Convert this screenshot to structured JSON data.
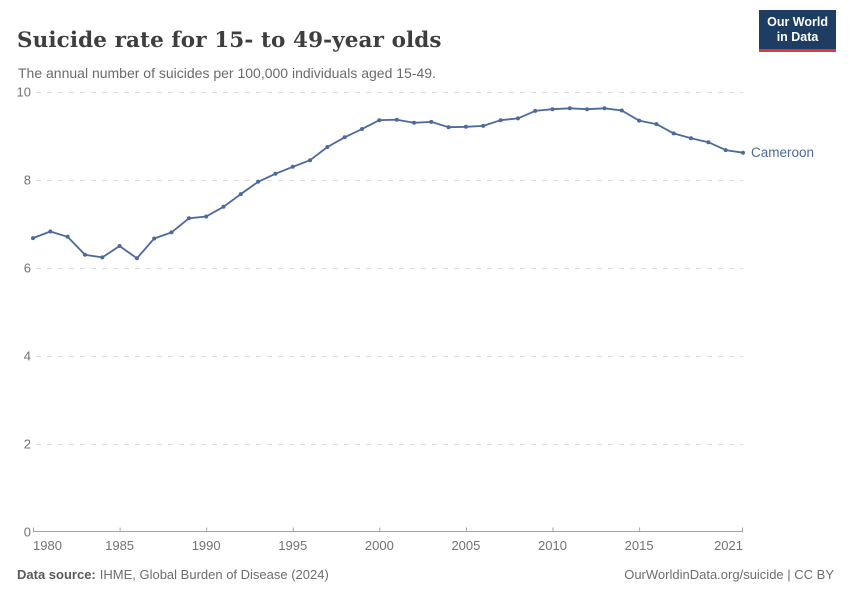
{
  "chart_data": {
    "type": "line",
    "title": "Suicide rate for 15- to 49-year olds",
    "subtitle": "The annual number of suicides per 100,000 individuals aged 15-49.",
    "xlabel": "",
    "ylabel": "",
    "ylim": [
      0,
      10
    ],
    "yticks": [
      0,
      2,
      4,
      6,
      8,
      10
    ],
    "xticks": [
      1980,
      1985,
      1990,
      1995,
      2000,
      2005,
      2010,
      2015,
      2021
    ],
    "grid": true,
    "legend_position": "end-of-line-label",
    "x": [
      1980,
      1981,
      1982,
      1983,
      1984,
      1985,
      1986,
      1987,
      1988,
      1989,
      1990,
      1991,
      1992,
      1993,
      1994,
      1995,
      1996,
      1997,
      1998,
      1999,
      2000,
      2001,
      2002,
      2003,
      2004,
      2005,
      2006,
      2007,
      2008,
      2009,
      2010,
      2011,
      2012,
      2013,
      2014,
      2015,
      2016,
      2017,
      2018,
      2019,
      2020,
      2021
    ],
    "series": [
      {
        "name": "Cameroon",
        "color": "#4C6A9C",
        "values": [
          6.68,
          6.83,
          6.71,
          6.3,
          6.24,
          6.5,
          6.22,
          6.67,
          6.81,
          7.13,
          7.17,
          7.39,
          7.68,
          7.96,
          8.14,
          8.3,
          8.45,
          8.75,
          8.97,
          9.16,
          9.36,
          9.37,
          9.3,
          9.32,
          9.2,
          9.21,
          9.23,
          9.36,
          9.4,
          9.57,
          9.61,
          9.63,
          9.61,
          9.63,
          9.58,
          9.35,
          9.27,
          9.06,
          8.95,
          8.86,
          8.68,
          8.62
        ]
      }
    ]
  },
  "logo": {
    "line1": "Our World",
    "line2": "in Data"
  },
  "footer": {
    "source_label": "Data source:",
    "source_text": "IHME, Global Burden of Disease (2024)",
    "credit": "OurWorldinData.org/suicide | CC BY"
  },
  "colors": {
    "line": "#4C6A9C",
    "grid": "#dcdcdc",
    "axis": "#a5a5a5",
    "tick_label": "#737373",
    "logo_bg": "#1d3d63",
    "logo_accent": "#e0373f"
  }
}
